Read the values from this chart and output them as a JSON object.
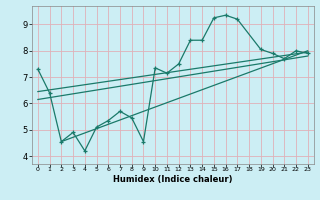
{
  "title": "",
  "xlabel": "Humidex (Indice chaleur)",
  "ylabel": "",
  "background_color": "#cceef4",
  "grid_color": "#e0b0b8",
  "line_color": "#1a7a6a",
  "xlim": [
    -0.5,
    23.5
  ],
  "ylim": [
    3.7,
    9.7
  ],
  "xticks": [
    0,
    1,
    2,
    3,
    4,
    5,
    6,
    7,
    8,
    9,
    10,
    11,
    12,
    13,
    14,
    15,
    16,
    17,
    18,
    19,
    20,
    21,
    22,
    23
  ],
  "yticks": [
    4,
    5,
    6,
    7,
    8,
    9
  ],
  "main_x": [
    0,
    1,
    2,
    3,
    4,
    5,
    6,
    7,
    8,
    9,
    10,
    11,
    12,
    13,
    14,
    15,
    16,
    17,
    19,
    20,
    21,
    22,
    23
  ],
  "main_y": [
    7.3,
    6.4,
    4.55,
    4.9,
    4.2,
    5.1,
    5.35,
    5.7,
    5.45,
    4.55,
    7.35,
    7.15,
    7.5,
    8.4,
    8.4,
    9.25,
    9.35,
    9.2,
    8.05,
    7.9,
    7.7,
    8.0,
    7.9
  ],
  "trend1_x": [
    0,
    23
  ],
  "trend1_y": [
    6.45,
    7.95
  ],
  "trend2_x": [
    0,
    23
  ],
  "trend2_y": [
    6.15,
    7.8
  ],
  "trend3_x": [
    2,
    23
  ],
  "trend3_y": [
    4.55,
    8.0
  ]
}
